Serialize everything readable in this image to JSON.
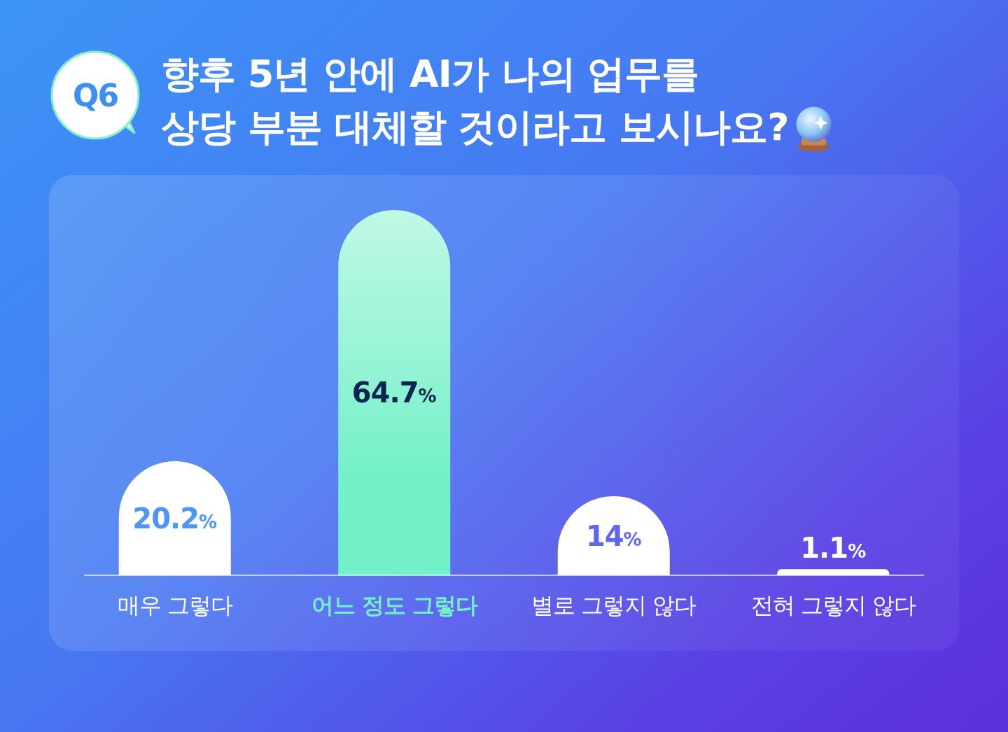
{
  "chart_data": {
    "type": "bar",
    "title": "향후 5년 안에 AI가 나의 업무를\n상당 부분 대체할 것이라고 보시나요?",
    "annotations": [
      "Q6"
    ],
    "categories": [
      "매우 그렇다",
      "어느 정도 그렇다",
      "별로 그렇지 않다",
      "전혀 그렇지 않다"
    ],
    "values": [
      20.2,
      64.7,
      14,
      1.1
    ],
    "value_labels": [
      "20.2%",
      "64.7%",
      "14%",
      "1.1%"
    ],
    "colors": [
      "#ffffff",
      "#72f0c8",
      "#ffffff",
      "#ffffff"
    ]
  }
}
